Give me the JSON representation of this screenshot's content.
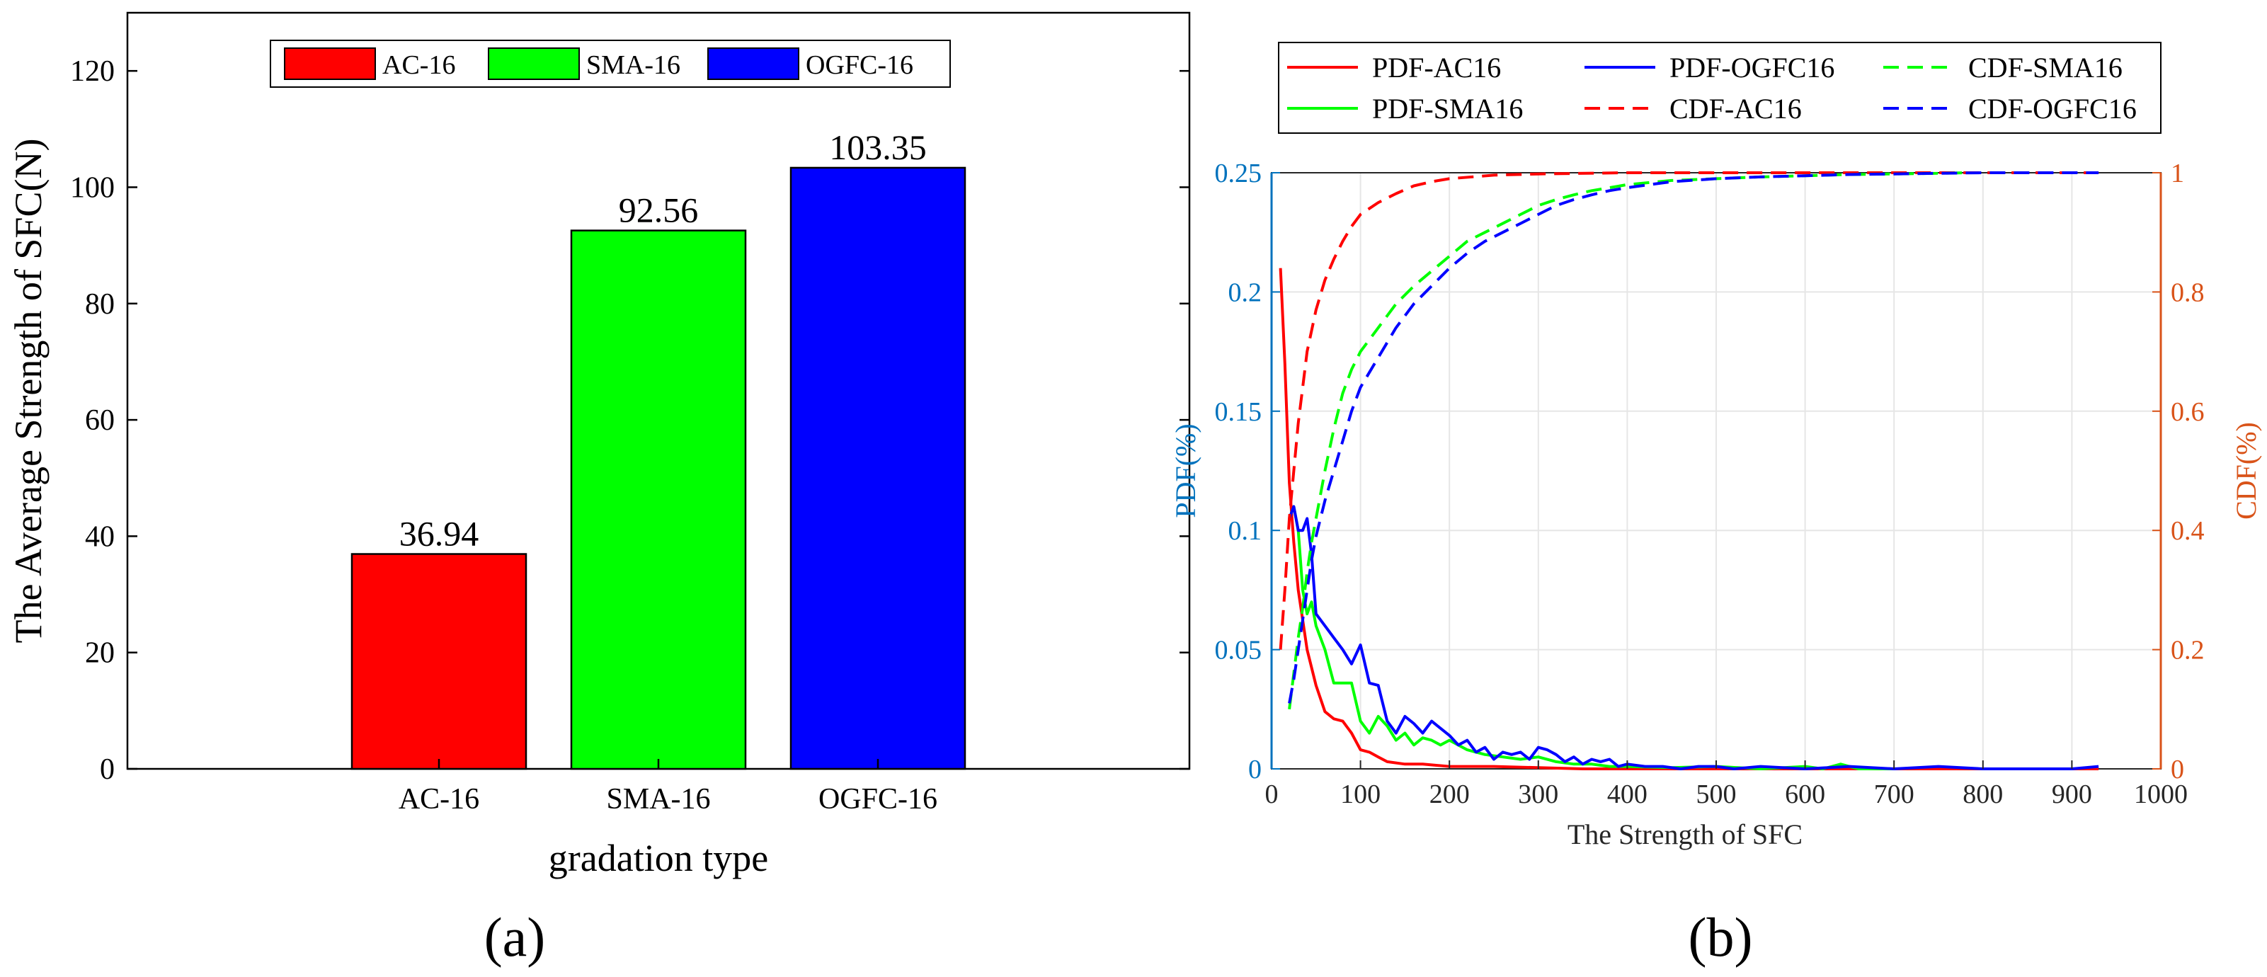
{
  "chart_data": [
    {
      "type": "bar",
      "panel_label": "(a)",
      "title": "",
      "xlabel": "gradation type",
      "ylabel": "The Average Strength of SFC(N)",
      "categories": [
        "AC-16",
        "SMA-16",
        "OGFC-16"
      ],
      "values": [
        36.94,
        92.56,
        103.35
      ],
      "value_labels": [
        "36.94",
        "92.56",
        "103.35"
      ],
      "colors": [
        "#ff0000",
        "#00ff00",
        "#0000ff"
      ],
      "ylim": [
        0,
        130
      ],
      "yticks": [
        0,
        20,
        40,
        60,
        80,
        100,
        120
      ],
      "ytick_labels": [
        "0",
        "20",
        "40",
        "60",
        "80",
        "100",
        "120"
      ],
      "grid": false,
      "legend": {
        "position": "top-center",
        "entries": [
          {
            "label": "AC-16",
            "color": "#ff0000"
          },
          {
            "label": "SMA-16",
            "color": "#00ff00"
          },
          {
            "label": "OGFC-16",
            "color": "#0000ff"
          }
        ]
      }
    },
    {
      "type": "line",
      "panel_label": "(b)",
      "title": "",
      "xlabel": "The Strength of SFC",
      "ylabel_left": "PDF(%)",
      "ylabel_right": "CDF(%)",
      "xlim": [
        0,
        1000
      ],
      "ylim_left": [
        0,
        0.25
      ],
      "ylim_right": [
        0,
        1
      ],
      "xticks": [
        0,
        100,
        200,
        300,
        400,
        500,
        600,
        700,
        800,
        900,
        1000
      ],
      "xtick_labels": [
        "0",
        "100",
        "200",
        "300",
        "400",
        "500",
        "600",
        "700",
        "800",
        "900",
        "1000"
      ],
      "yticks_left": [
        0,
        0.05,
        0.1,
        0.15,
        0.2,
        0.25
      ],
      "ytick_labels_left": [
        "0",
        "0.05",
        "0.1",
        "0.15",
        "0.2",
        "0.25"
      ],
      "yticks_right": [
        0,
        0.2,
        0.4,
        0.6,
        0.8,
        1
      ],
      "ytick_labels_right": [
        "0",
        "0.2",
        "0.4",
        "0.6",
        "0.8",
        "1"
      ],
      "left_axis_color": "#0072bd",
      "right_axis_color": "#d95319",
      "grid": true,
      "legend_position": "top",
      "series": [
        {
          "name": "PDF-AC16",
          "axis": "left",
          "style": "solid",
          "color": "#ff0000",
          "x": [
            10,
            15,
            20,
            25,
            30,
            40,
            50,
            60,
            70,
            80,
            90,
            100,
            110,
            120,
            130,
            150,
            170,
            200,
            250,
            300,
            350,
            400,
            500,
            600,
            700,
            800,
            930
          ],
          "y": [
            0.21,
            0.17,
            0.12,
            0.095,
            0.075,
            0.05,
            0.035,
            0.024,
            0.021,
            0.02,
            0.015,
            0.008,
            0.007,
            0.005,
            0.003,
            0.002,
            0.002,
            0.001,
            0.001,
            0.0005,
            0,
            0,
            0,
            0,
            0,
            0,
            0
          ]
        },
        {
          "name": "PDF-SMA16",
          "axis": "left",
          "style": "solid",
          "color": "#00ff00",
          "x": [
            20,
            25,
            30,
            35,
            40,
            45,
            50,
            60,
            70,
            80,
            90,
            100,
            110,
            120,
            130,
            140,
            150,
            160,
            170,
            180,
            190,
            200,
            220,
            240,
            260,
            280,
            300,
            320,
            340,
            360,
            380,
            400,
            450,
            500,
            550,
            600,
            620,
            640,
            660,
            700
          ],
          "y": [
            0.105,
            0.11,
            0.1,
            0.075,
            0.065,
            0.07,
            0.06,
            0.05,
            0.036,
            0.036,
            0.036,
            0.02,
            0.015,
            0.022,
            0.018,
            0.012,
            0.015,
            0.01,
            0.013,
            0.012,
            0.01,
            0.012,
            0.008,
            0.006,
            0.005,
            0.004,
            0.005,
            0.003,
            0.002,
            0.002,
            0.001,
            0.001,
            0.0005,
            0.001,
            0,
            0.001,
            0,
            0.002,
            0,
            0
          ]
        },
        {
          "name": "PDF-OGFC16",
          "axis": "left",
          "style": "solid",
          "color": "#0000ff",
          "x": [
            20,
            25,
            30,
            35,
            40,
            45,
            50,
            60,
            70,
            80,
            90,
            100,
            110,
            120,
            130,
            140,
            150,
            160,
            170,
            180,
            190,
            200,
            210,
            220,
            230,
            240,
            250,
            260,
            270,
            280,
            290,
            300,
            310,
            320,
            330,
            340,
            350,
            360,
            370,
            380,
            390,
            400,
            420,
            440,
            460,
            480,
            500,
            520,
            550,
            600,
            650,
            700,
            750,
            800,
            850,
            900,
            930
          ],
          "y": [
            0.105,
            0.11,
            0.1,
            0.1,
            0.105,
            0.09,
            0.065,
            0.06,
            0.055,
            0.05,
            0.044,
            0.052,
            0.036,
            0.035,
            0.02,
            0.015,
            0.022,
            0.019,
            0.015,
            0.02,
            0.017,
            0.014,
            0.01,
            0.012,
            0.007,
            0.009,
            0.004,
            0.007,
            0.006,
            0.007,
            0.004,
            0.009,
            0.008,
            0.006,
            0.003,
            0.005,
            0.002,
            0.004,
            0.003,
            0.004,
            0.001,
            0.002,
            0.001,
            0.001,
            0,
            0.001,
            0.001,
            0,
            0.001,
            0,
            0.001,
            0,
            0.001,
            0,
            0,
            0,
            0.001
          ]
        },
        {
          "name": "CDF-AC16",
          "axis": "right",
          "style": "dashed",
          "color": "#ff0000",
          "x": [
            10,
            15,
            20,
            25,
            30,
            35,
            40,
            50,
            60,
            70,
            80,
            90,
            100,
            120,
            140,
            160,
            180,
            200,
            250,
            300,
            400,
            500,
            600,
            700,
            800,
            930
          ],
          "y": [
            0.2,
            0.3,
            0.42,
            0.5,
            0.58,
            0.64,
            0.7,
            0.77,
            0.82,
            0.855,
            0.885,
            0.91,
            0.93,
            0.95,
            0.965,
            0.978,
            0.985,
            0.99,
            0.996,
            0.998,
            1,
            1,
            1,
            1,
            1,
            1
          ]
        },
        {
          "name": "CDF-SMA16",
          "axis": "right",
          "style": "dashed",
          "color": "#00ff00",
          "x": [
            20,
            25,
            30,
            35,
            40,
            45,
            50,
            60,
            70,
            80,
            90,
            100,
            120,
            140,
            160,
            180,
            200,
            220,
            240,
            260,
            280,
            300,
            320,
            340,
            360,
            380,
            400,
            450,
            500,
            550,
            600,
            650,
            700,
            750,
            780
          ],
          "y": [
            0.1,
            0.16,
            0.22,
            0.27,
            0.33,
            0.38,
            0.42,
            0.5,
            0.57,
            0.63,
            0.67,
            0.7,
            0.74,
            0.78,
            0.81,
            0.835,
            0.86,
            0.885,
            0.9,
            0.915,
            0.93,
            0.945,
            0.955,
            0.963,
            0.97,
            0.975,
            0.98,
            0.987,
            0.99,
            0.993,
            0.995,
            0.997,
            0.998,
            0.999,
            1
          ]
        },
        {
          "name": "CDF-OGFC16",
          "axis": "right",
          "style": "dashed",
          "color": "#0000ff",
          "x": [
            20,
            25,
            30,
            35,
            40,
            45,
            50,
            60,
            70,
            80,
            90,
            100,
            120,
            140,
            160,
            180,
            200,
            220,
            240,
            260,
            280,
            300,
            320,
            340,
            360,
            380,
            400,
            450,
            500,
            550,
            600,
            650,
            700,
            750,
            800,
            850,
            900,
            930
          ],
          "y": [
            0.11,
            0.15,
            0.2,
            0.25,
            0.3,
            0.35,
            0.39,
            0.45,
            0.5,
            0.55,
            0.6,
            0.64,
            0.69,
            0.74,
            0.78,
            0.81,
            0.84,
            0.865,
            0.885,
            0.9,
            0.915,
            0.93,
            0.945,
            0.955,
            0.963,
            0.97,
            0.975,
            0.985,
            0.99,
            0.993,
            0.995,
            0.997,
            0.998,
            0.999,
            1,
            1,
            1,
            1
          ]
        }
      ]
    }
  ]
}
